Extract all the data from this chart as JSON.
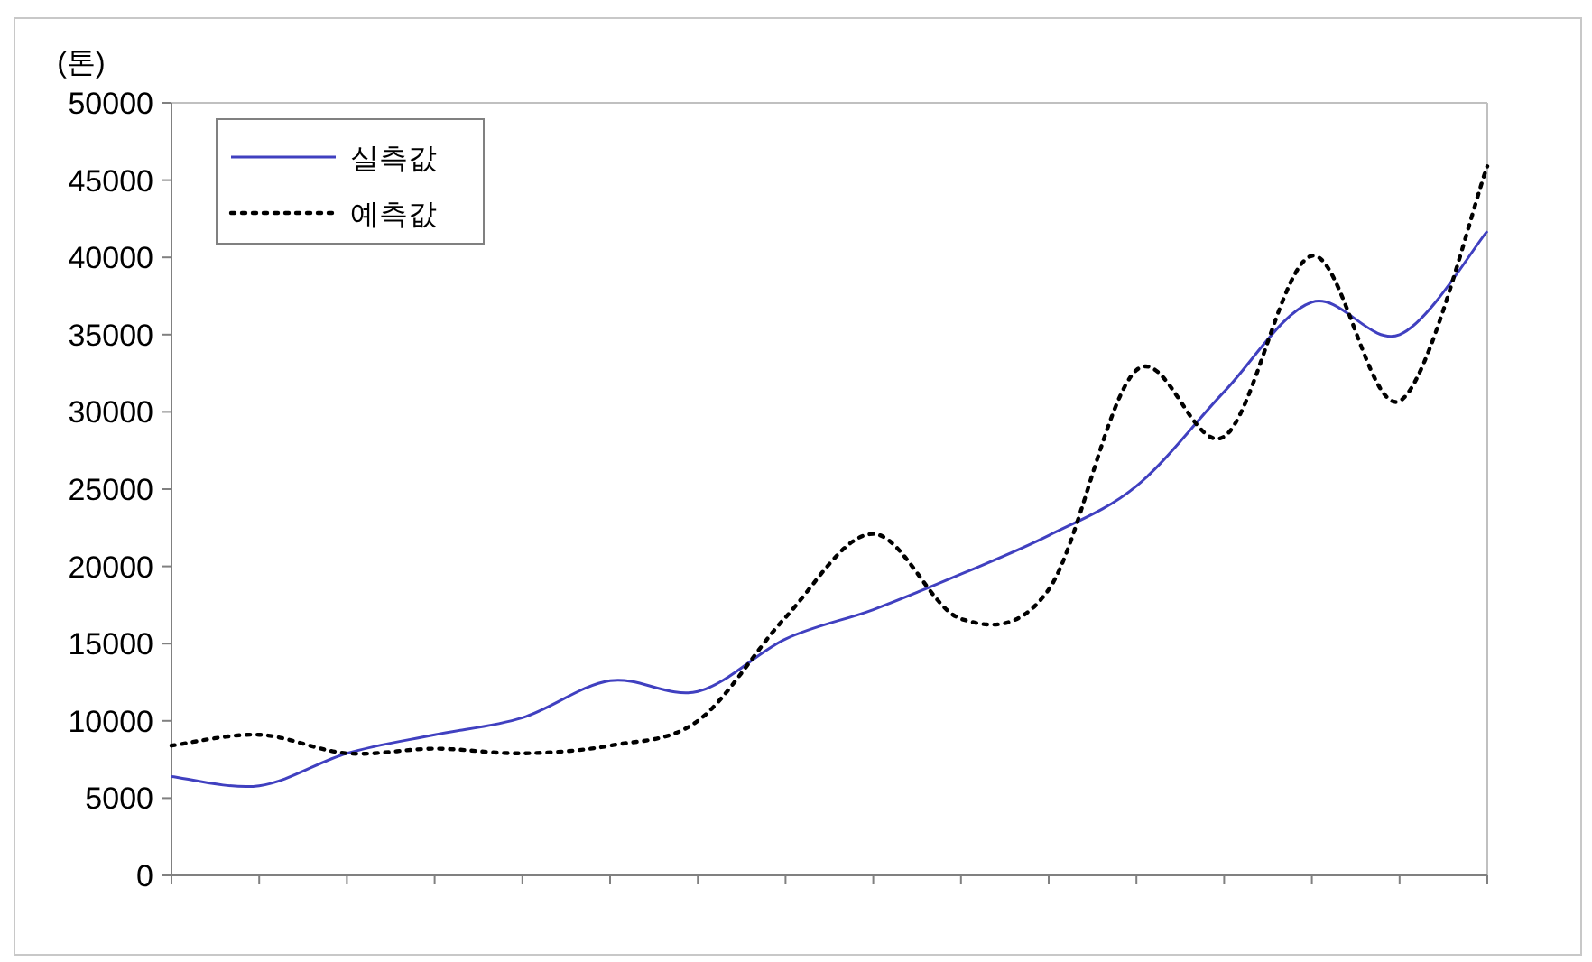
{
  "chart_data": {
    "type": "line",
    "ylabel": "(톤)",
    "categories": [
      null,
      null,
      null,
      null,
      null,
      null,
      null,
      null,
      null,
      null,
      null,
      null,
      null,
      null,
      null,
      null
    ],
    "series": [
      {
        "name": "실측값",
        "color": "#4040c0",
        "line_style": "solid",
        "values": [
          6400,
          5800,
          7900,
          9100,
          10200,
          12600,
          11900,
          15300,
          17200,
          19500,
          22000,
          25200,
          31300,
          37100,
          35000,
          41700
        ]
      },
      {
        "name": "예측값",
        "color": "#000000",
        "line_style": "dotted",
        "values": [
          8400,
          9100,
          7900,
          8200,
          7900,
          8400,
          10000,
          16700,
          22100,
          16600,
          18500,
          32700,
          28400,
          40100,
          30700,
          45900
        ]
      }
    ],
    "ylim": [
      0,
      50000
    ],
    "yticks": [
      0,
      5000,
      10000,
      15000,
      20000,
      25000,
      30000,
      35000,
      40000,
      45000,
      50000
    ],
    "grid": false,
    "legend": "top left"
  }
}
